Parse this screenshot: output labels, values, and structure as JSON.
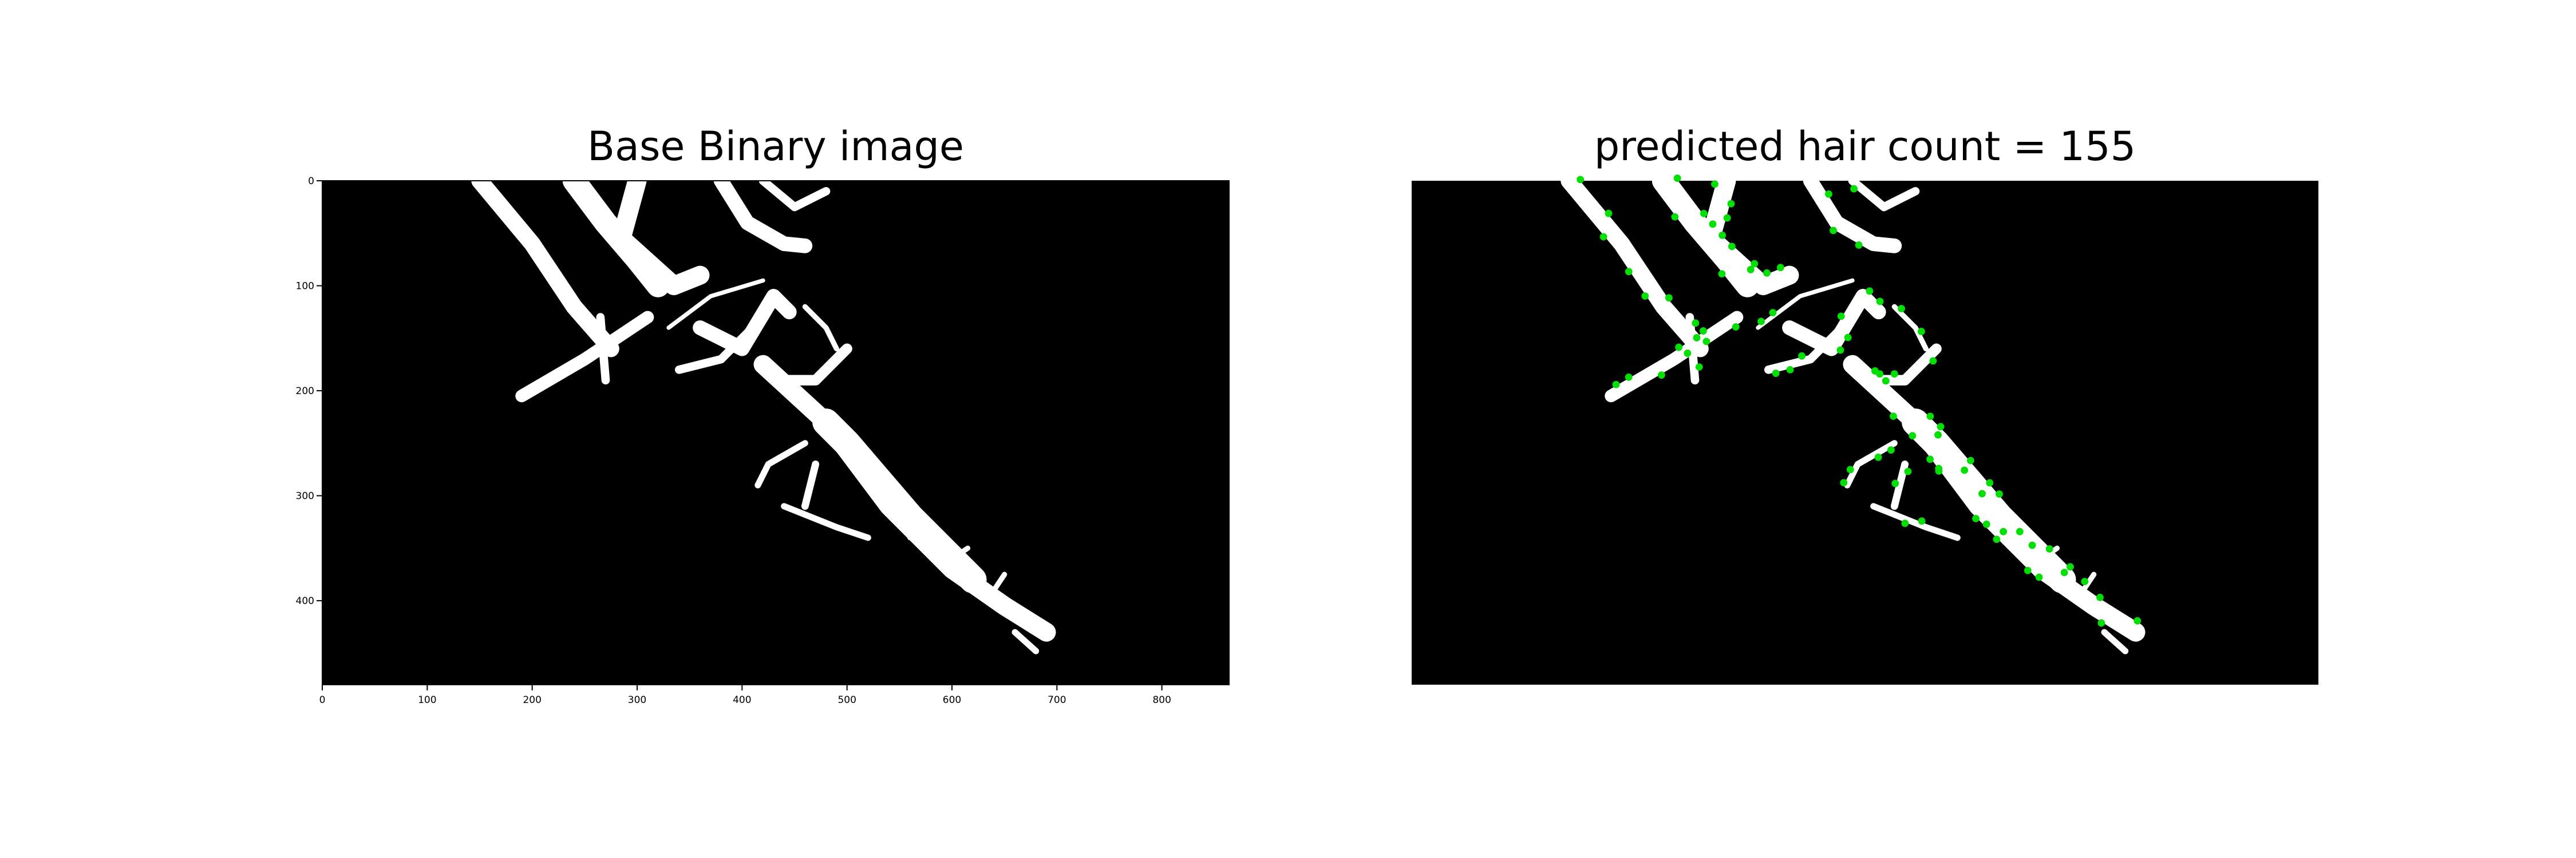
{
  "panels": [
    {
      "title": "Base Binary image",
      "xlim": [
        0,
        864
      ],
      "ylim": [
        480,
        0
      ],
      "xticks": [
        0,
        100,
        200,
        300,
        400,
        500,
        600,
        700,
        800
      ],
      "yticks": [
        0,
        100,
        200,
        300,
        400
      ]
    },
    {
      "title": "predicted hair count = 155",
      "xlim": [
        0,
        864
      ],
      "ylim": [
        480,
        0
      ]
    }
  ]
}
